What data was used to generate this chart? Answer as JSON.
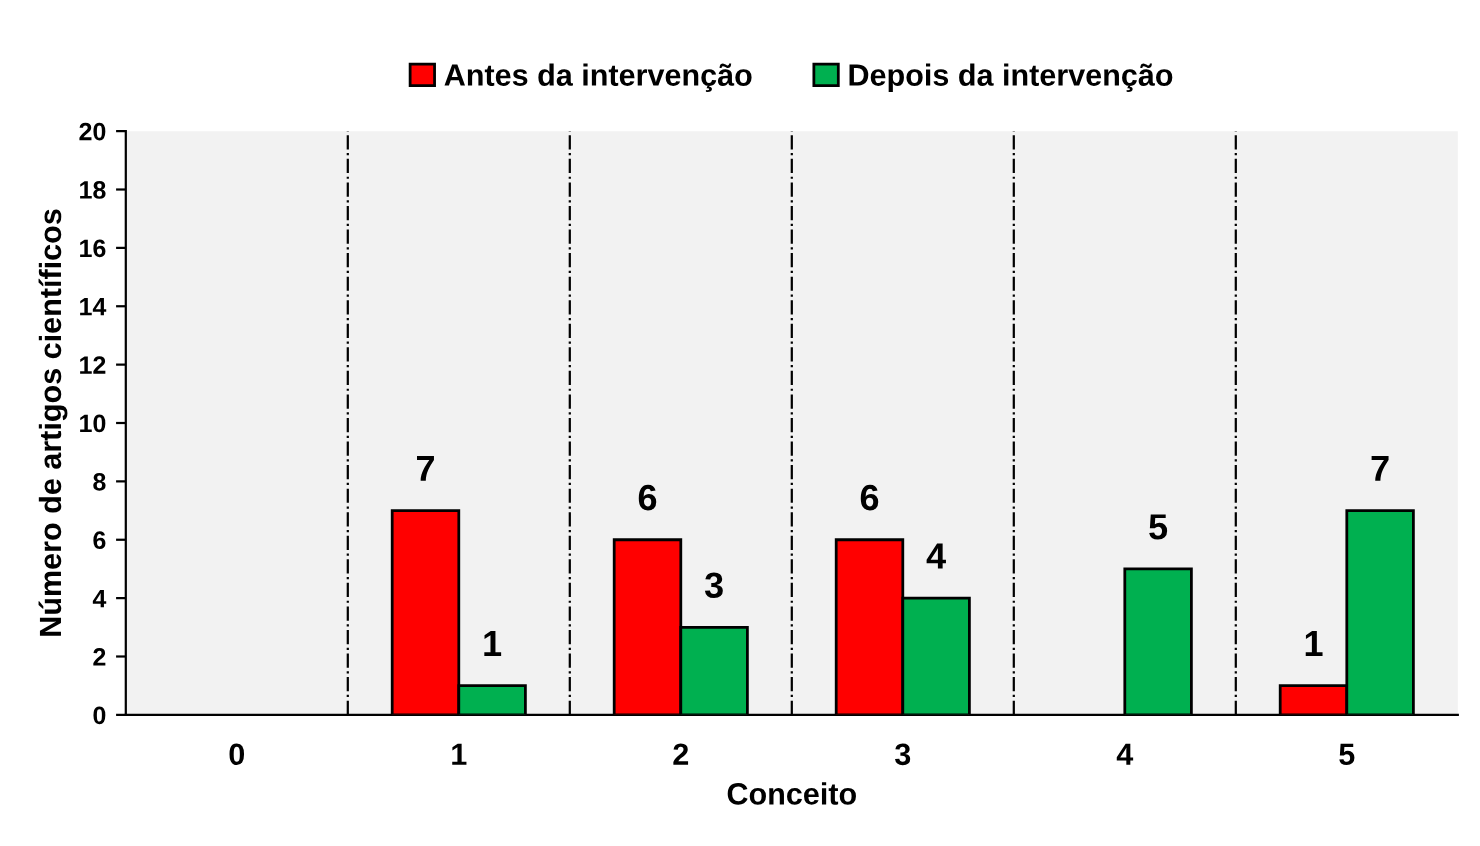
{
  "chart_data": {
    "type": "bar",
    "xlabel": "Conceito",
    "ylabel": "Número de artigos científicos",
    "categories": [
      "0",
      "1",
      "2",
      "3",
      "4",
      "5"
    ],
    "series": [
      {
        "name": "Antes da intervenção",
        "color": "#ff0000",
        "values": [
          0,
          7,
          6,
          6,
          0,
          1
        ],
        "value_labels": [
          null,
          "7",
          "6",
          "6",
          null,
          "1"
        ]
      },
      {
        "name": "Depois da intervenção",
        "color": "#00b050",
        "values": [
          0,
          1,
          3,
          4,
          5,
          7
        ],
        "value_labels": [
          null,
          "1",
          "3",
          "4",
          "5",
          "7"
        ]
      }
    ],
    "ylim": [
      0,
      20
    ],
    "yticks": [
      0,
      2,
      4,
      6,
      8,
      10,
      12,
      14,
      16,
      18,
      20
    ],
    "grid": "x",
    "legend": "top"
  }
}
